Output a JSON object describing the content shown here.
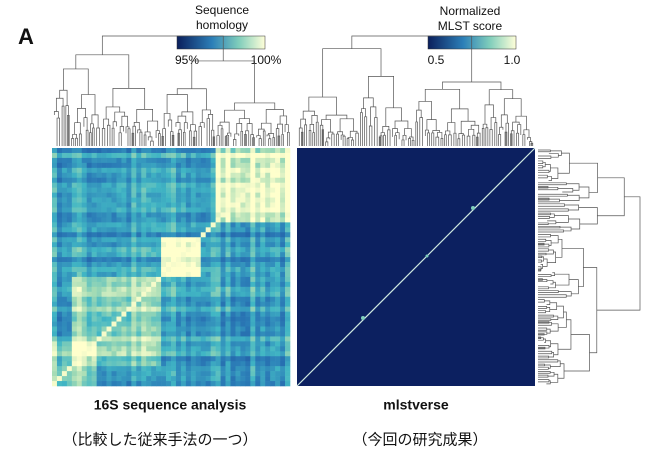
{
  "panel_label": "A",
  "panels": [
    {
      "colorbar": {
        "title": [
          "Sequence",
          "homology"
        ],
        "ticks": [
          "95%",
          "100%"
        ]
      },
      "caption": "16S sequence analysis",
      "note": "（比較した従来手法の一つ）"
    },
    {
      "colorbar": {
        "title": [
          "Normalized",
          "MLST score"
        ],
        "ticks": [
          "0.5",
          "1.0"
        ]
      },
      "caption": "mlstverse",
      "note": "（今回の研究成果）"
    }
  ]
}
